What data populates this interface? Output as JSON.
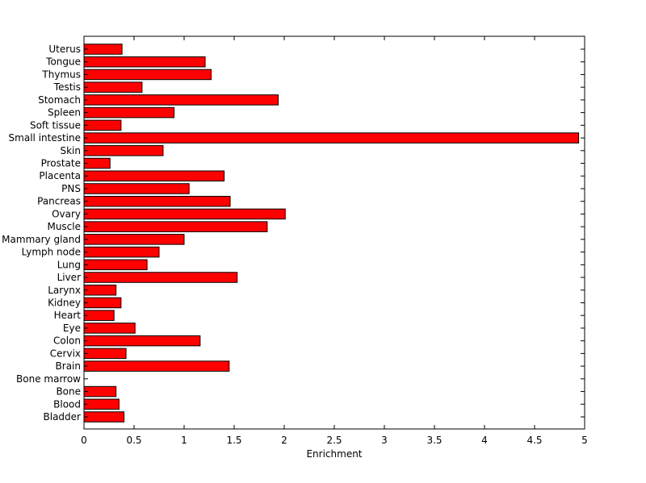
{
  "chart_data": {
    "type": "bar",
    "orientation": "horizontal",
    "xlabel": "Enrichment",
    "ylabel": "",
    "title": "",
    "xlim": [
      0,
      5
    ],
    "x_ticks": [
      "0",
      "0.5",
      "1",
      "1.5",
      "2",
      "2.5",
      "3",
      "3.5",
      "4",
      "4.5",
      "5"
    ],
    "grid": false,
    "bar_color": "#ff0000",
    "categories": [
      "Bladder",
      "Blood",
      "Bone",
      "Bone marrow",
      "Brain",
      "Cervix",
      "Colon",
      "Eye",
      "Heart",
      "Kidney",
      "Larynx",
      "Liver",
      "Lung",
      "Lymph node",
      "Mammary gland",
      "Muscle",
      "Ovary",
      "Pancreas",
      "PNS",
      "Placenta",
      "Prostate",
      "Skin",
      "Small intestine",
      "Soft tissue",
      "Spleen",
      "Stomach",
      "Testis",
      "Thymus",
      "Tongue",
      "Uterus"
    ],
    "values": [
      0.4,
      0.35,
      0.32,
      0.0,
      1.45,
      0.42,
      1.16,
      0.51,
      0.3,
      0.37,
      0.32,
      1.53,
      0.63,
      0.75,
      1.0,
      1.83,
      2.01,
      1.46,
      1.05,
      1.4,
      0.26,
      0.79,
      4.94,
      0.37,
      0.9,
      1.94,
      0.58,
      1.27,
      1.21,
      0.38
    ]
  }
}
